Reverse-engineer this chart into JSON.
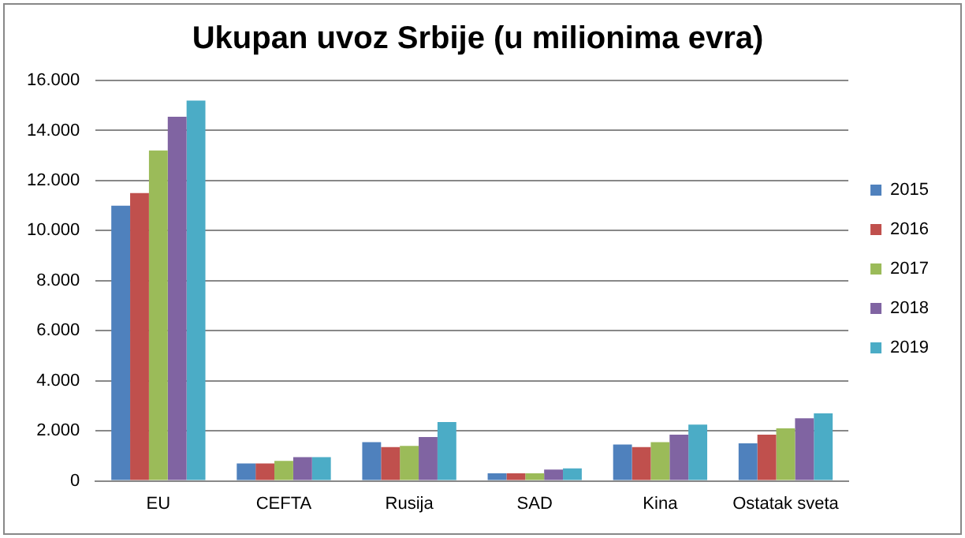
{
  "chart_data": {
    "type": "bar",
    "title": "Ukupan uvoz Srbije (u milionima evra)",
    "categories": [
      "EU",
      "CEFTA",
      "Rusija",
      "SAD",
      "Kina",
      "Ostatak sveta"
    ],
    "series": [
      {
        "name": "2015",
        "color": "#4f81bd",
        "values": [
          11000,
          700,
          1550,
          300,
          1450,
          1500
        ]
      },
      {
        "name": "2016",
        "color": "#c0504d",
        "values": [
          11500,
          700,
          1350,
          300,
          1350,
          1850
        ]
      },
      {
        "name": "2017",
        "color": "#9bbb59",
        "values": [
          13200,
          800,
          1400,
          300,
          1550,
          2100
        ]
      },
      {
        "name": "2018",
        "color": "#8064a2",
        "values": [
          14550,
          950,
          1750,
          450,
          1850,
          2500
        ]
      },
      {
        "name": "2019",
        "color": "#4bacc6",
        "values": [
          15200,
          950,
          2350,
          500,
          2250,
          2700
        ]
      }
    ],
    "ylim": [
      0,
      16000
    ],
    "yticks": [
      {
        "value": 0,
        "label": "0"
      },
      {
        "value": 2000,
        "label": "2.000"
      },
      {
        "value": 4000,
        "label": "4.000"
      },
      {
        "value": 6000,
        "label": "6.000"
      },
      {
        "value": 8000,
        "label": "8.000"
      },
      {
        "value": 10000,
        "label": "10.000"
      },
      {
        "value": 12000,
        "label": "12.000"
      },
      {
        "value": 14000,
        "label": "14.000"
      },
      {
        "value": 16000,
        "label": "16.000"
      }
    ],
    "grid": "y",
    "legend": "right"
  }
}
